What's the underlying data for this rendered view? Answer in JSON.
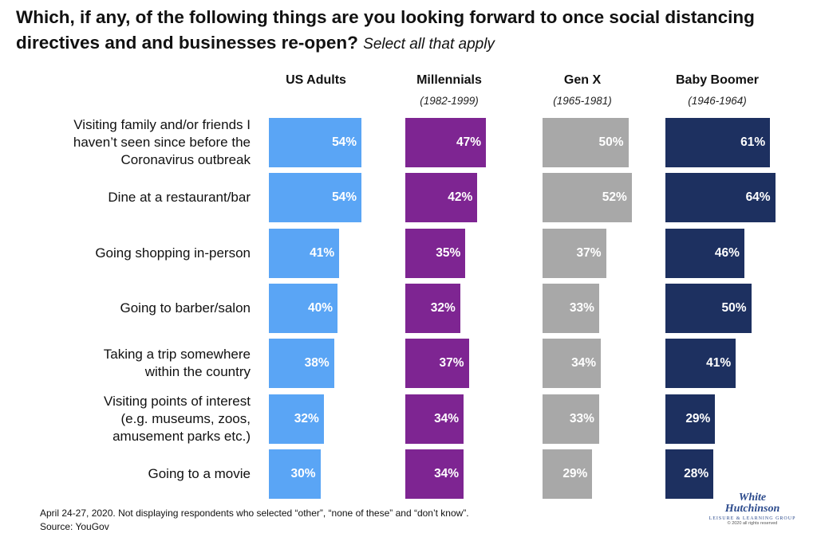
{
  "title": {
    "main": "Which, if any, of the following things are you looking forward to once social distancing directives and and businesses re-open?",
    "sub": "Select all that apply"
  },
  "colors": {
    "us_adults": "#5aa5f5",
    "millennials": "#7e2592",
    "gen_x": "#a8a8a8",
    "baby_boomer": "#1d3060"
  },
  "chart_data": {
    "type": "bar",
    "orientation": "horizontal",
    "xlim": [
      0,
      100
    ],
    "categories": [
      "Visiting family and/or friends I haven’t seen since before the Coronavirus outbreak",
      "Dine at a restaurant/bar",
      "Going shopping in-person",
      "Going to barber/salon",
      "Taking a trip somewhere within the country",
      "Visiting points of interest (e.g. museums, zoos, amusement parks etc.)",
      "Going to a movie"
    ],
    "category_lines": [
      [
        "Visiting family and/or friends I",
        "haven’t seen since before the",
        "Coronavirus outbreak"
      ],
      [
        "Dine at a restaurant/bar"
      ],
      [
        "Going shopping in-person"
      ],
      [
        "Going to barber/salon"
      ],
      [
        "Taking a trip somewhere",
        "within the country"
      ],
      [
        "Visiting points of interest",
        "(e.g. museums, zoos,",
        "amusement parks etc.)"
      ],
      [
        "Going to a movie"
      ]
    ],
    "series": [
      {
        "name": "US Adults",
        "years": "",
        "color": "#5aa5f5",
        "values": [
          54,
          54,
          41,
          40,
          38,
          32,
          30
        ]
      },
      {
        "name": "Millennials",
        "years": "(1982-1999)",
        "color": "#7e2592",
        "values": [
          47,
          42,
          35,
          32,
          37,
          34,
          34
        ]
      },
      {
        "name": "Gen X",
        "years": "(1965-1981)",
        "color": "#a8a8a8",
        "values": [
          50,
          52,
          37,
          33,
          34,
          33,
          29
        ]
      },
      {
        "name": "Baby Boomer",
        "years": "(1946-1964)",
        "color": "#1d3060",
        "values": [
          61,
          64,
          46,
          50,
          41,
          29,
          28
        ]
      }
    ],
    "value_suffix": "%"
  },
  "footnote": {
    "line1": "April 24-27, 2020. Not displaying respondents who selected “other”, “none of these” and “don’t know”.",
    "line2": "Source: YouGov"
  },
  "logo": {
    "line1": "White",
    "line2": "Hutchinson",
    "line3": "LEISURE & LEARNING GROUP",
    "line4": "© 2020 all rights reserved"
  }
}
